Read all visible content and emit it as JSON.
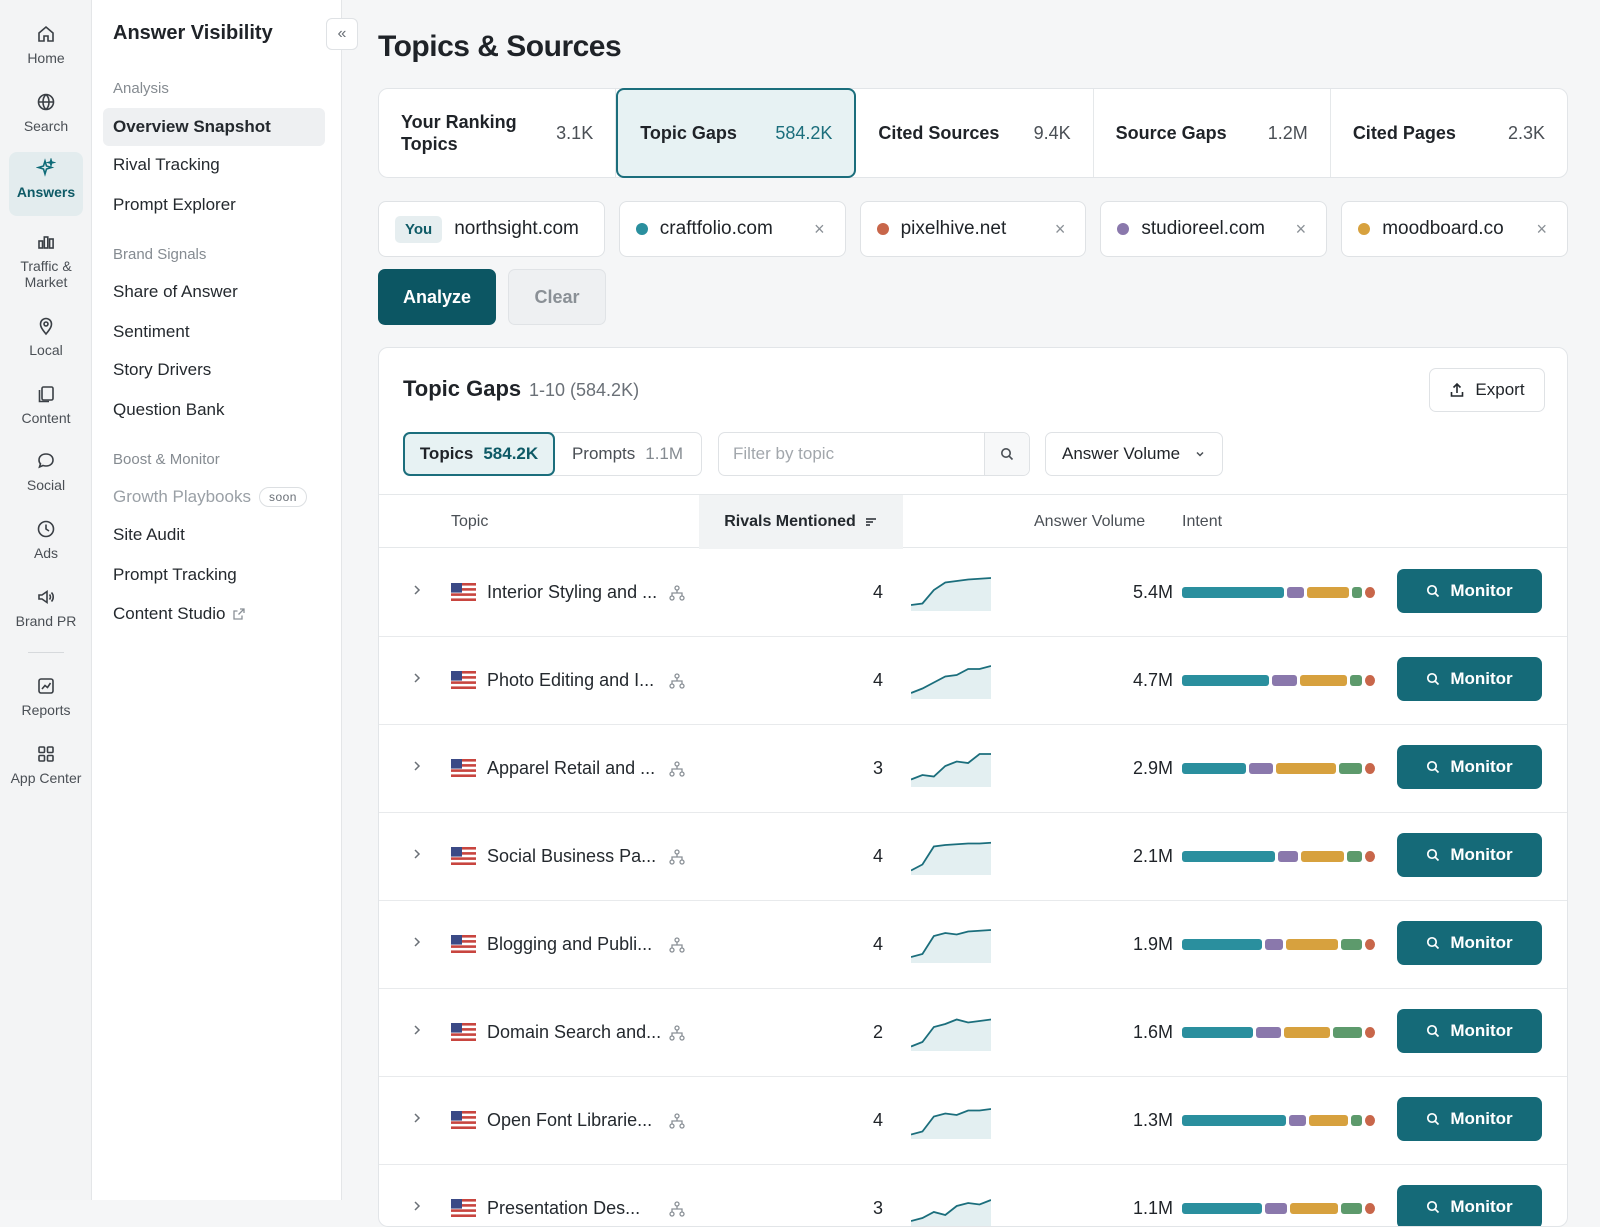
{
  "rail": {
    "items": [
      {
        "label": "Home",
        "icon": "home-icon"
      },
      {
        "label": "Search",
        "icon": "globe-icon"
      },
      {
        "label": "Answers",
        "icon": "sparkle-icon"
      },
      {
        "label": "Traffic & Market",
        "icon": "bar-chart-icon"
      },
      {
        "label": "Local",
        "icon": "map-pin-icon"
      },
      {
        "label": "Content",
        "icon": "copy-icon"
      },
      {
        "label": "Social",
        "icon": "chat-bubble-icon"
      },
      {
        "label": "Ads",
        "icon": "clock-icon"
      },
      {
        "label": "Brand PR",
        "icon": "megaphone-icon"
      },
      {
        "label": "Reports",
        "icon": "chart-icon"
      },
      {
        "label": "App Center",
        "icon": "grid-icon"
      }
    ]
  },
  "sidebar": {
    "title": "Answer Visibility",
    "sections": {
      "analysis": "Analysis",
      "brand": "Brand Signals",
      "boost": "Boost & Monitor"
    },
    "items": {
      "overview": "Overview Snapshot",
      "rival": "Rival Tracking",
      "prompt_explorer": "Prompt Explorer",
      "share": "Share of Answer",
      "sentiment": "Sentiment",
      "story": "Story Drivers",
      "question": "Question Bank",
      "growth": "Growth Playbooks",
      "soon": "soon",
      "audit": "Site Audit",
      "prompt_tracking": "Prompt Tracking",
      "studio": "Content Studio"
    }
  },
  "page": {
    "title": "Topics & Sources"
  },
  "tabs": [
    {
      "label": "Your Ranking Topics",
      "value": "3.1K"
    },
    {
      "label": "Topic Gaps",
      "value": "584.2K"
    },
    {
      "label": "Cited Sources",
      "value": "9.4K"
    },
    {
      "label": "Source Gaps",
      "value": "1.2M"
    },
    {
      "label": "Cited Pages",
      "value": "2.3K"
    }
  ],
  "domains": {
    "you_badge": "You",
    "you": "northsight.com",
    "rivals": [
      {
        "name": "craftfolio.com",
        "color": "#2a8f9e"
      },
      {
        "name": "pixelhive.net",
        "color": "#c8664a"
      },
      {
        "name": "studioreel.com",
        "color": "#8a78ac"
      },
      {
        "name": "moodboard.co",
        "color": "#d7a13e"
      }
    ],
    "remove": "×"
  },
  "actions": {
    "analyze": "Analyze",
    "clear": "Clear"
  },
  "table": {
    "title": "Topic Gaps",
    "range": "1-10 (584.2K)",
    "export": "Export",
    "seg_topics": "Topics",
    "seg_topics_n": "584.2K",
    "seg_prompts": "Prompts",
    "seg_prompts_n": "1.1M",
    "filter_placeholder": "Filter by topic",
    "sort_select": "Answer Volume",
    "headers": {
      "topic": "Topic",
      "rivals": "Rivals Mentioned",
      "volume": "Answer Volume",
      "intent": "Intent"
    },
    "monitor": "Monitor",
    "intent_colors": [
      "#2a8f9e",
      "#8a78ac",
      "#d7a13e",
      "#5d9a6c",
      "#c8664a"
    ],
    "rows": [
      {
        "topic": "Interior Styling and ...",
        "rivals": "4",
        "volume": "5.4M",
        "trend": [
          2,
          3,
          12,
          17,
          18,
          19,
          19.5,
          20
        ],
        "intent": [
          54,
          9,
          22,
          5,
          5
        ]
      },
      {
        "topic": "Photo Editing and I...",
        "rivals": "4",
        "volume": "4.7M",
        "trend": [
          2,
          5,
          9,
          13,
          14,
          18,
          18,
          20
        ],
        "intent": [
          46,
          13,
          25,
          6,
          5
        ]
      },
      {
        "topic": "Apparel Retail and ...",
        "rivals": "3",
        "volume": "2.9M",
        "trend": [
          3,
          6,
          5,
          12,
          15,
          14,
          20,
          20
        ],
        "intent": [
          34,
          13,
          32,
          12,
          5
        ]
      },
      {
        "topic": "Social Business Pa...",
        "rivals": "4",
        "volume": "2.1M",
        "trend": [
          1,
          5,
          17,
          18,
          18.5,
          19,
          19,
          19.5
        ],
        "intent": [
          50,
          11,
          23,
          8,
          5
        ]
      },
      {
        "topic": "Blogging and Publi...",
        "rivals": "4",
        "volume": "1.9M",
        "trend": [
          2,
          4,
          16,
          18,
          17,
          19,
          19.5,
          20
        ],
        "intent": [
          43,
          10,
          28,
          11,
          5
        ]
      },
      {
        "topic": "Domain Search and...",
        "rivals": "2",
        "volume": "1.6M",
        "trend": [
          1,
          4,
          14,
          16,
          19,
          17,
          18,
          19
        ],
        "intent": [
          39,
          14,
          25,
          16,
          5
        ]
      },
      {
        "topic": "Open Font Librarie...",
        "rivals": "4",
        "volume": "1.3M",
        "trend": [
          1,
          3,
          13,
          15,
          14,
          17,
          17,
          18
        ],
        "intent": [
          56,
          9,
          21,
          6,
          5
        ]
      },
      {
        "topic": "Presentation Des...",
        "rivals": "3",
        "volume": "1.1M",
        "trend": [
          2,
          4,
          8,
          6,
          12,
          14,
          13,
          16
        ],
        "intent": [
          42,
          12,
          25,
          11,
          5
        ]
      }
    ]
  }
}
